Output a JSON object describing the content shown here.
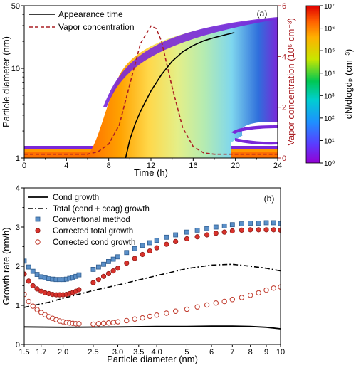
{
  "colors": {
    "vapor": "#aa1f24",
    "axis": "#000000",
    "open_marker": "#c0392b",
    "square_marker": "#5a8fc8",
    "filled_marker": "#d8322c"
  },
  "chart_data": [
    {
      "panel_label": "(a)",
      "type": "heatmap",
      "xlabel": "Time (h)",
      "ylabel": "Particle diameter (nm)",
      "y2label": "Vapor concentration (10⁶ cm⁻³)",
      "colorbar_label": "dN/dlogdₚ (cm⁻³)",
      "xlim": [
        0,
        24
      ],
      "ylim": [
        1,
        50
      ],
      "yscale": "log",
      "y2lim": [
        0,
        6
      ],
      "x_ticks": [
        "0",
        "4",
        "8",
        "12",
        "16",
        "20",
        "24"
      ],
      "y_ticks": [
        "1",
        "10",
        "50"
      ],
      "y2_ticks": [
        "0",
        "2",
        "4",
        "6"
      ],
      "colorbar_ticks": [
        "10⁰",
        "10¹",
        "10²",
        "10³",
        "10⁴",
        "10⁵",
        "10⁶",
        "10⁷"
      ],
      "colorbar_range": [
        1,
        10000000
      ],
      "series": [
        {
          "name": "Appearance time",
          "style": "solid",
          "x": [
            9.6,
            10.0,
            10.5,
            11.0,
            12.0,
            13.0,
            14.0,
            15.0,
            16.0,
            17.0,
            18.0,
            19.0,
            19.9
          ],
          "y": [
            1.0,
            1.6,
            2.4,
            3.3,
            5.6,
            8.5,
            12.0,
            15.3,
            18.0,
            20.3,
            22.0,
            23.6,
            25.0
          ]
        },
        {
          "name": "Vapor concentration",
          "style": "dashed",
          "axis": "right",
          "x": [
            0,
            6,
            7,
            8,
            9,
            10,
            11,
            12,
            12.5,
            13,
            14,
            15,
            16,
            17,
            18,
            24
          ],
          "y": [
            0.15,
            0.15,
            0.25,
            0.55,
            1.3,
            2.9,
            4.5,
            5.2,
            5.1,
            4.6,
            2.8,
            1.2,
            0.45,
            0.2,
            0.15,
            0.15
          ]
        }
      ]
    },
    {
      "panel_label": "(b)",
      "type": "scatter",
      "xlabel": "Particle diameter (nm)",
      "ylabel": "Growth rate (nm/h)",
      "xlim": [
        1.5,
        10
      ],
      "xscale": "log",
      "ylim": [
        0,
        4
      ],
      "x_ticks": [
        "1.5",
        "1.7",
        "2.0",
        "2.5",
        "3.0",
        "3.5",
        "4.0",
        "5",
        "6",
        "7",
        "8",
        "9",
        "10"
      ],
      "y_ticks": [
        "0",
        "1",
        "2",
        "3",
        "4"
      ],
      "series": [
        {
          "name": "Cond growth",
          "style": "solid",
          "x": [
            1.5,
            2.0,
            3.0,
            4.0,
            5.0,
            6.0,
            7.0,
            8.0,
            9.0,
            10.0
          ],
          "y": [
            0.45,
            0.44,
            0.45,
            0.46,
            0.46,
            0.47,
            0.47,
            0.46,
            0.44,
            0.4
          ]
        },
        {
          "name": "Total (cond + coag) growth",
          "style": "dashdot",
          "x": [
            1.5,
            1.8,
            2.0,
            2.5,
            3.0,
            3.5,
            4.0,
            5.0,
            6.0,
            7.0,
            8.0,
            9.0,
            10.0
          ],
          "y": [
            0.95,
            1.08,
            1.18,
            1.38,
            1.52,
            1.65,
            1.76,
            1.94,
            2.03,
            2.05,
            2.0,
            1.95,
            1.88
          ]
        },
        {
          "name": "Conventional method",
          "marker": "square",
          "x": [
            1.5,
            1.55,
            1.6,
            1.65,
            1.7,
            1.75,
            1.8,
            1.85,
            1.9,
            1.95,
            2.0,
            2.05,
            2.1,
            2.15,
            2.2,
            2.25,
            2.5,
            2.6,
            2.7,
            2.8,
            2.9,
            3.0,
            3.2,
            3.4,
            3.6,
            3.8,
            4.0,
            4.3,
            4.6,
            5.0,
            5.4,
            5.8,
            6.2,
            6.6,
            7.0,
            7.5,
            8.0,
            8.5,
            9.0,
            9.5,
            10.0
          ],
          "y": [
            2.13,
            1.98,
            1.87,
            1.79,
            1.73,
            1.7,
            1.68,
            1.67,
            1.66,
            1.66,
            1.66,
            1.67,
            1.69,
            1.71,
            1.74,
            1.78,
            1.92,
            1.98,
            2.05,
            2.12,
            2.18,
            2.24,
            2.35,
            2.45,
            2.53,
            2.6,
            2.66,
            2.74,
            2.8,
            2.87,
            2.92,
            2.96,
            3.0,
            3.03,
            3.06,
            3.08,
            3.1,
            3.1,
            3.11,
            3.11,
            3.09
          ]
        },
        {
          "name": "Corrected total growth",
          "marker": "filled-circle",
          "x": [
            1.5,
            1.55,
            1.6,
            1.65,
            1.7,
            1.75,
            1.8,
            1.85,
            1.9,
            1.95,
            2.0,
            2.05,
            2.1,
            2.15,
            2.2,
            2.25,
            2.5,
            2.6,
            2.7,
            2.8,
            2.9,
            3.0,
            3.2,
            3.4,
            3.6,
            3.8,
            4.0,
            4.3,
            4.6,
            5.0,
            5.4,
            5.8,
            6.2,
            6.6,
            7.0,
            7.5,
            8.0,
            8.5,
            9.0,
            9.5,
            10.0
          ],
          "y": [
            1.8,
            1.62,
            1.5,
            1.42,
            1.36,
            1.32,
            1.3,
            1.28,
            1.27,
            1.27,
            1.27,
            1.28,
            1.3,
            1.33,
            1.36,
            1.4,
            1.58,
            1.66,
            1.74,
            1.81,
            1.88,
            1.95,
            2.08,
            2.2,
            2.3,
            2.39,
            2.47,
            2.56,
            2.63,
            2.7,
            2.75,
            2.8,
            2.84,
            2.87,
            2.9,
            2.92,
            2.93,
            2.93,
            2.93,
            2.93,
            2.92
          ]
        },
        {
          "name": "Corrected cond growth",
          "marker": "open-circle",
          "x": [
            1.5,
            1.55,
            1.6,
            1.65,
            1.7,
            1.75,
            1.8,
            1.85,
            1.9,
            1.95,
            2.0,
            2.05,
            2.1,
            2.15,
            2.2,
            2.25,
            2.5,
            2.6,
            2.7,
            2.8,
            2.9,
            3.0,
            3.2,
            3.4,
            3.6,
            3.8,
            4.0,
            4.3,
            4.6,
            5.0,
            5.4,
            5.8,
            6.2,
            6.6,
            7.0,
            7.5,
            8.0,
            8.5,
            9.0,
            9.5,
            10.0
          ],
          "y": [
            1.28,
            1.1,
            0.98,
            0.89,
            0.82,
            0.76,
            0.71,
            0.67,
            0.63,
            0.6,
            0.58,
            0.56,
            0.55,
            0.54,
            0.53,
            0.53,
            0.52,
            0.53,
            0.54,
            0.55,
            0.56,
            0.58,
            0.61,
            0.65,
            0.68,
            0.72,
            0.75,
            0.8,
            0.85,
            0.9,
            0.96,
            1.01,
            1.06,
            1.1,
            1.15,
            1.2,
            1.26,
            1.32,
            1.39,
            1.44,
            1.47
          ]
        }
      ]
    }
  ]
}
